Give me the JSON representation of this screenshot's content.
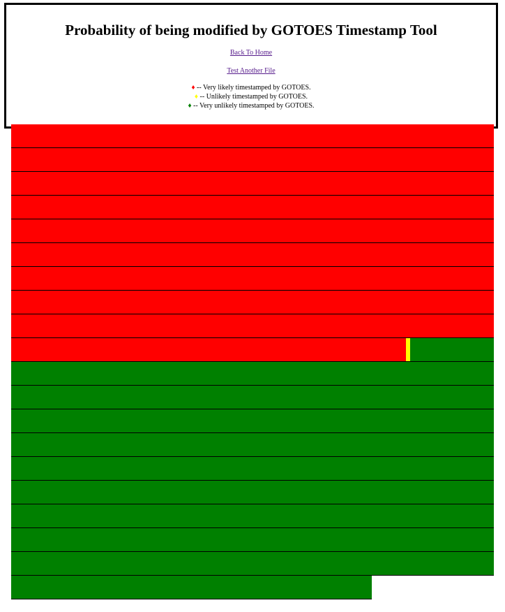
{
  "page": {
    "title": "Probability of being modified by GOTOES Timestamp Tool",
    "links": {
      "home": "Back To Home",
      "test": "Test Another File"
    },
    "legend": [
      {
        "symbol": "♦",
        "text": " -- Very likely timestamped by GOTOES.",
        "color": "#ff0000"
      },
      {
        "symbol": "♦",
        "text": " -- Unlikely timestamped by GOTOES.",
        "color": "#ffff00"
      },
      {
        "symbol": "♦",
        "text": " -- Very unlikely timestamped by GOTOES.",
        "color": "#008000"
      }
    ]
  },
  "colors": {
    "red": "#ff0000",
    "yellow": "#ffff00",
    "green": "#008000"
  },
  "timeline": {
    "rows": [
      [
        {
          "status": "red",
          "fraction": 1.0
        }
      ],
      [
        {
          "status": "red",
          "fraction": 1.0
        }
      ],
      [
        {
          "status": "red",
          "fraction": 1.0
        }
      ],
      [
        {
          "status": "red",
          "fraction": 1.0
        }
      ],
      [
        {
          "status": "red",
          "fraction": 1.0
        }
      ],
      [
        {
          "status": "red",
          "fraction": 1.0
        }
      ],
      [
        {
          "status": "red",
          "fraction": 1.0
        }
      ],
      [
        {
          "status": "red",
          "fraction": 1.0
        }
      ],
      [
        {
          "status": "red",
          "fraction": 1.0
        }
      ],
      [
        {
          "status": "red",
          "fraction": 0.818
        },
        {
          "status": "yellow",
          "fraction": 0.009
        },
        {
          "status": "green",
          "fraction": 0.173
        }
      ],
      [
        {
          "status": "green",
          "fraction": 1.0
        }
      ],
      [
        {
          "status": "green",
          "fraction": 1.0
        }
      ],
      [
        {
          "status": "green",
          "fraction": 1.0
        }
      ],
      [
        {
          "status": "green",
          "fraction": 1.0
        }
      ],
      [
        {
          "status": "green",
          "fraction": 1.0
        }
      ],
      [
        {
          "status": "green",
          "fraction": 1.0
        }
      ],
      [
        {
          "status": "green",
          "fraction": 1.0
        }
      ],
      [
        {
          "status": "green",
          "fraction": 1.0
        }
      ],
      [
        {
          "status": "green",
          "fraction": 1.0
        }
      ],
      [
        {
          "status": "green",
          "fraction": 0.747
        }
      ]
    ]
  }
}
